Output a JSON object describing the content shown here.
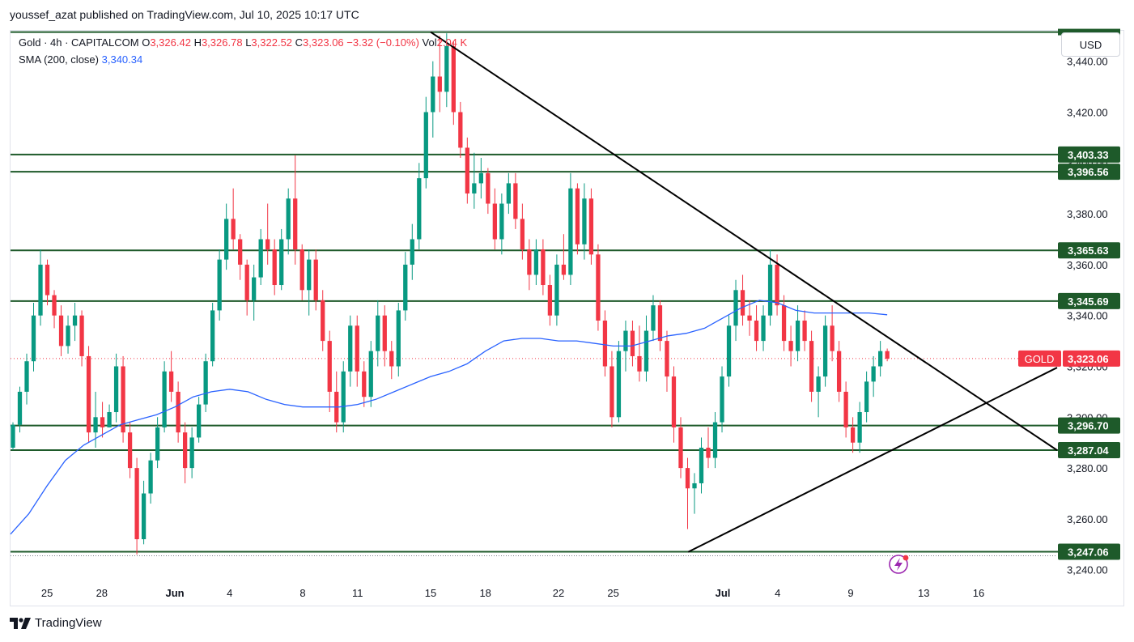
{
  "header": {
    "published": "youssef_azat published on TradingView.com, Jul 10, 2025 10:17 UTC"
  },
  "legend": {
    "symbol": "Gold · 4h · CAPITALCOM",
    "o_label": "O",
    "o_value": "3,326.42",
    "h_label": "H",
    "h_value": "3,326.78",
    "l_label": "L",
    "l_value": "3,322.52",
    "c_label": "C",
    "c_value": "3,323.06",
    "change": "−3.32 (−0.10%)",
    "vol_label": "Vol",
    "vol_value": "2.04 K",
    "sma_label": "SMA (200, close)",
    "sma_value": "3,340.34"
  },
  "currency_button": "USD",
  "footer": {
    "brand": "TradingView"
  },
  "colors": {
    "up": "#089981",
    "down": "#f23645",
    "sma": "#2962ff",
    "level": "#1e5a2a",
    "trend": "#000000",
    "price_tag": "#f23645"
  },
  "icons": {
    "logo": "tradingview-logo-icon",
    "replay": "lightning-replay-icon"
  },
  "chart_data": {
    "type": "candlestick",
    "symbol": "Gold",
    "interval": "4h",
    "ylim": [
      3238,
      3452
    ],
    "y_ticks": [
      "3,240.00",
      "3,260.00",
      "3,280.00",
      "3,300.00",
      "3,320.00",
      "3,340.00",
      "3,360.00",
      "3,380.00",
      "3,400.00",
      "3,420.00",
      "3,440.00"
    ],
    "y_tick_values": [
      3240,
      3260,
      3280,
      3300,
      3320,
      3340,
      3360,
      3380,
      3400,
      3420,
      3440
    ],
    "x_ticks": [
      {
        "label": "25",
        "day": 25
      },
      {
        "label": "28",
        "day": 28
      },
      {
        "label": "Jun",
        "day": 32
      },
      {
        "label": "4",
        "day": 35
      },
      {
        "label": "8",
        "day": 39
      },
      {
        "label": "11",
        "day": 42
      },
      {
        "label": "15",
        "day": 46
      },
      {
        "label": "18",
        "day": 49
      },
      {
        "label": "22",
        "day": 53
      },
      {
        "label": "25",
        "day": 56
      },
      {
        "label": "Jul",
        "day": 62
      },
      {
        "label": "4",
        "day": 65
      },
      {
        "label": "9",
        "day": 69
      },
      {
        "label": "13",
        "day": 73
      },
      {
        "label": "16",
        "day": 76
      }
    ],
    "x_range_days": [
      23.0,
      80.3
    ],
    "horizontal_levels": [
      {
        "value": 3451.5,
        "label": ""
      },
      {
        "value": 3403.33,
        "label": "3,403.33"
      },
      {
        "value": 3396.56,
        "label": "3,396.56"
      },
      {
        "value": 3365.63,
        "label": "3,365.63"
      },
      {
        "value": 3345.69,
        "label": "3,345.69"
      },
      {
        "value": 3296.7,
        "label": "3,296.70"
      },
      {
        "value": 3287.04,
        "label": "3,287.04"
      },
      {
        "value": 3247.06,
        "label": "3,247.06"
      }
    ],
    "trendlines": [
      {
        "from": [
          46.0,
          3451.5
        ],
        "to": [
          80.3,
          3287.0
        ]
      },
      {
        "from": [
          60.1,
          3247.0
        ],
        "to": [
          80.3,
          3319.5
        ]
      }
    ],
    "last_price": {
      "value": 3323.06,
      "label": "3,323.06",
      "symbol_tag": "GOLD"
    },
    "dotted_low": 3245.5,
    "sma_200": [
      [
        23.0,
        3254
      ],
      [
        24.0,
        3262
      ],
      [
        25.0,
        3273
      ],
      [
        26.0,
        3283
      ],
      [
        27.0,
        3289
      ],
      [
        28.0,
        3293
      ],
      [
        29.0,
        3297
      ],
      [
        30.0,
        3299
      ],
      [
        31.0,
        3301
      ],
      [
        32.0,
        3304
      ],
      [
        33.0,
        3308
      ],
      [
        34.0,
        3310
      ],
      [
        35.0,
        3311
      ],
      [
        36.0,
        3310
      ],
      [
        37.0,
        3307
      ],
      [
        38.0,
        3305
      ],
      [
        39.0,
        3304
      ],
      [
        40.0,
        3304
      ],
      [
        41.0,
        3304
      ],
      [
        42.0,
        3305
      ],
      [
        43.0,
        3307
      ],
      [
        44.0,
        3310
      ],
      [
        45.0,
        3313
      ],
      [
        46.0,
        3316
      ],
      [
        47.0,
        3318
      ],
      [
        48.0,
        3321
      ],
      [
        49.0,
        3326
      ],
      [
        50.0,
        3330
      ],
      [
        51.0,
        3331
      ],
      [
        52.0,
        3331
      ],
      [
        53.0,
        3330
      ],
      [
        54.0,
        3330
      ],
      [
        55.0,
        3329
      ],
      [
        56.0,
        3328
      ],
      [
        57.0,
        3328
      ],
      [
        58.0,
        3330
      ],
      [
        59.0,
        3332
      ],
      [
        60.0,
        3333
      ],
      [
        61.0,
        3335
      ],
      [
        62.0,
        3339
      ],
      [
        63.0,
        3343
      ],
      [
        64.0,
        3346
      ],
      [
        65.0,
        3345
      ],
      [
        66.0,
        3342
      ],
      [
        67.0,
        3341
      ],
      [
        68.0,
        3341
      ],
      [
        69.0,
        3341
      ],
      [
        70.0,
        3341
      ],
      [
        71.0,
        3340.3
      ]
    ],
    "ohlc_approx": [
      [
        3288,
        3298,
        3287,
        3297
      ],
      [
        3297,
        3312,
        3294,
        3310
      ],
      [
        3310,
        3325,
        3305,
        3322
      ],
      [
        3322,
        3345,
        3318,
        3340
      ],
      [
        3340,
        3366,
        3336,
        3360
      ],
      [
        3360,
        3362,
        3344,
        3348
      ],
      [
        3348,
        3350,
        3335,
        3340
      ],
      [
        3340,
        3344,
        3324,
        3328
      ],
      [
        3328,
        3340,
        3325,
        3336
      ],
      [
        3336,
        3345,
        3330,
        3340
      ],
      [
        3340,
        3342,
        3320,
        3324
      ],
      [
        3324,
        3328,
        3290,
        3294
      ],
      [
        3294,
        3310,
        3288,
        3300
      ],
      [
        3300,
        3306,
        3292,
        3296
      ],
      [
        3296,
        3305,
        3296,
        3302
      ],
      [
        3302,
        3325,
        3298,
        3320
      ],
      [
        3320,
        3324,
        3290,
        3294
      ],
      [
        3294,
        3298,
        3276,
        3280
      ],
      [
        3280,
        3284,
        3246,
        3252
      ],
      [
        3252,
        3275,
        3250,
        3270
      ],
      [
        3270,
        3286,
        3266,
        3283
      ],
      [
        3283,
        3300,
        3280,
        3296
      ],
      [
        3296,
        3322,
        3294,
        3318
      ],
      [
        3318,
        3326,
        3306,
        3310
      ],
      [
        3310,
        3314,
        3290,
        3294
      ],
      [
        3294,
        3298,
        3274,
        3280
      ],
      [
        3280,
        3296,
        3276,
        3292
      ],
      [
        3292,
        3308,
        3290,
        3305
      ],
      [
        3305,
        3325,
        3302,
        3322
      ],
      [
        3322,
        3345,
        3320,
        3342
      ],
      [
        3342,
        3366,
        3338,
        3362
      ],
      [
        3362,
        3384,
        3358,
        3378
      ],
      [
        3378,
        3390,
        3366,
        3370
      ],
      [
        3370,
        3372,
        3354,
        3360
      ],
      [
        3360,
        3362,
        3340,
        3346
      ],
      [
        3346,
        3360,
        3338,
        3355
      ],
      [
        3355,
        3374,
        3352,
        3370
      ],
      [
        3370,
        3384,
        3360,
        3366
      ],
      [
        3366,
        3370,
        3348,
        3352
      ],
      [
        3352,
        3374,
        3350,
        3370
      ],
      [
        3370,
        3390,
        3364,
        3386
      ],
      [
        3386,
        3403,
        3360,
        3366
      ],
      [
        3366,
        3368,
        3346,
        3350
      ],
      [
        3350,
        3366,
        3340,
        3362
      ],
      [
        3362,
        3366,
        3342,
        3346
      ],
      [
        3346,
        3350,
        3326,
        3330
      ],
      [
        3330,
        3334,
        3302,
        3310
      ],
      [
        3310,
        3318,
        3294,
        3298
      ],
      [
        3298,
        3322,
        3294,
        3318
      ],
      [
        3318,
        3340,
        3312,
        3336
      ],
      [
        3336,
        3340,
        3312,
        3318
      ],
      [
        3318,
        3322,
        3304,
        3308
      ],
      [
        3308,
        3330,
        3304,
        3326
      ],
      [
        3326,
        3346,
        3320,
        3340
      ],
      [
        3340,
        3344,
        3320,
        3326
      ],
      [
        3326,
        3330,
        3315,
        3320
      ],
      [
        3320,
        3345,
        3316,
        3342
      ],
      [
        3342,
        3365,
        3338,
        3360
      ],
      [
        3360,
        3376,
        3354,
        3370
      ],
      [
        3370,
        3400,
        3366,
        3394
      ],
      [
        3394,
        3426,
        3390,
        3420
      ],
      [
        3420,
        3440,
        3410,
        3434
      ],
      [
        3434,
        3450,
        3420,
        3428
      ],
      [
        3428,
        3451,
        3422,
        3446
      ],
      [
        3446,
        3448,
        3415,
        3420
      ],
      [
        3420,
        3424,
        3402,
        3406
      ],
      [
        3406,
        3410,
        3384,
        3388
      ],
      [
        3388,
        3404,
        3382,
        3392
      ],
      [
        3392,
        3402,
        3386,
        3396
      ],
      [
        3396,
        3398,
        3380,
        3384
      ],
      [
        3384,
        3390,
        3366,
        3370
      ],
      [
        3370,
        3388,
        3364,
        3384
      ],
      [
        3384,
        3396,
        3380,
        3392
      ],
      [
        3392,
        3396,
        3374,
        3378
      ],
      [
        3378,
        3384,
        3362,
        3366
      ],
      [
        3366,
        3370,
        3350,
        3356
      ],
      [
        3356,
        3370,
        3352,
        3366
      ],
      [
        3366,
        3370,
        3348,
        3352
      ],
      [
        3352,
        3356,
        3336,
        3340
      ],
      [
        3340,
        3364,
        3336,
        3360
      ],
      [
        3360,
        3372,
        3354,
        3356
      ],
      [
        3356,
        3396,
        3352,
        3390
      ],
      [
        3390,
        3392,
        3364,
        3368
      ],
      [
        3368,
        3392,
        3362,
        3386
      ],
      [
        3386,
        3390,
        3360,
        3364
      ],
      [
        3364,
        3368,
        3334,
        3338
      ],
      [
        3338,
        3342,
        3316,
        3320
      ],
      [
        3320,
        3326,
        3296,
        3300
      ],
      [
        3300,
        3330,
        3298,
        3326
      ],
      [
        3326,
        3338,
        3318,
        3334
      ],
      [
        3334,
        3338,
        3320,
        3324
      ],
      [
        3324,
        3336,
        3314,
        3318
      ],
      [
        3318,
        3340,
        3314,
        3334
      ],
      [
        3334,
        3348,
        3330,
        3344
      ],
      [
        3344,
        3346,
        3326,
        3330
      ],
      [
        3330,
        3334,
        3310,
        3316
      ],
      [
        3316,
        3320,
        3290,
        3296
      ],
      [
        3296,
        3300,
        3276,
        3280
      ],
      [
        3280,
        3284,
        3256,
        3272
      ],
      [
        3272,
        3278,
        3262,
        3274
      ],
      [
        3274,
        3292,
        3270,
        3288
      ],
      [
        3288,
        3296,
        3280,
        3284
      ],
      [
        3284,
        3302,
        3280,
        3298
      ],
      [
        3298,
        3320,
        3294,
        3316
      ],
      [
        3316,
        3340,
        3312,
        3336
      ],
      [
        3336,
        3354,
        3330,
        3350
      ],
      [
        3350,
        3356,
        3336,
        3340
      ],
      [
        3340,
        3346,
        3332,
        3338
      ],
      [
        3338,
        3344,
        3326,
        3330
      ],
      [
        3330,
        3344,
        3326,
        3340
      ],
      [
        3340,
        3366,
        3336,
        3360
      ],
      [
        3360,
        3364,
        3340,
        3344
      ],
      [
        3344,
        3348,
        3326,
        3330
      ],
      [
        3330,
        3336,
        3320,
        3326
      ],
      [
        3326,
        3344,
        3322,
        3338
      ],
      [
        3338,
        3342,
        3326,
        3330
      ],
      [
        3330,
        3334,
        3306,
        3310
      ],
      [
        3310,
        3320,
        3300,
        3316
      ],
      [
        3316,
        3340,
        3312,
        3336
      ],
      [
        3336,
        3344,
        3322,
        3326
      ],
      [
        3326,
        3330,
        3306,
        3310
      ],
      [
        3310,
        3314,
        3292,
        3296
      ],
      [
        3296,
        3300,
        3286,
        3290
      ],
      [
        3290,
        3306,
        3286,
        3302
      ],
      [
        3302,
        3318,
        3298,
        3314
      ],
      [
        3314,
        3324,
        3308,
        3320
      ],
      [
        3320,
        3330,
        3316,
        3326
      ],
      [
        3326,
        3327,
        3322,
        3323
      ]
    ]
  }
}
